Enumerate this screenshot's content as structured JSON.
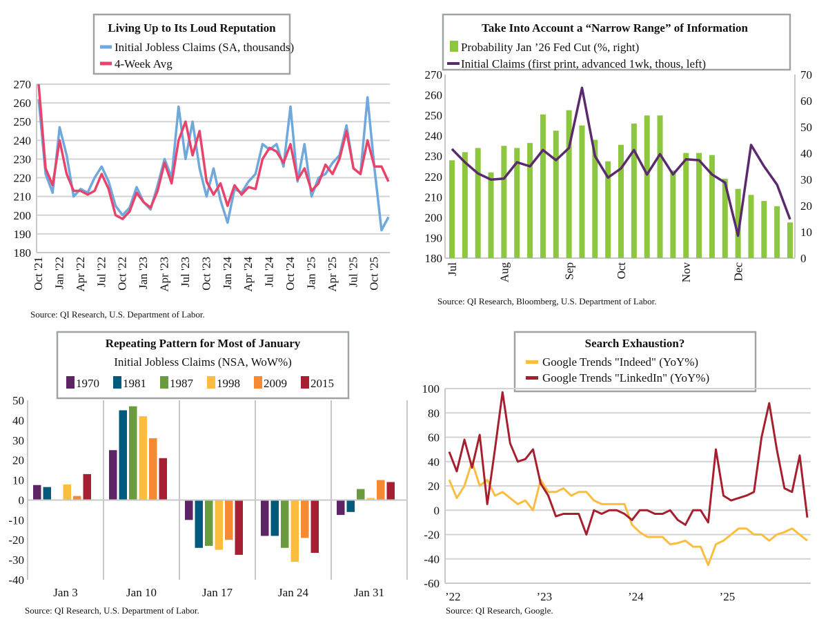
{
  "colors": {
    "claims": "#6fa8dc",
    "avg": "#e8436b",
    "fedcut": "#8dc63f",
    "initial": "#5b2a6e",
    "y1970": "#5e2566",
    "y1981": "#005a7c",
    "y1987": "#6a9c3f",
    "y1998": "#fcbd3e",
    "y2009": "#f58a33",
    "y2015": "#a61f33",
    "indeed": "#fcbd3e",
    "linkedin": "#a61f2f"
  },
  "chart_data": [
    {
      "type": "line",
      "title": "Living Up to Its Loud Reputation",
      "source": "Source: QI Research, U.S. Department of Labor.",
      "ylim": [
        180,
        270
      ],
      "yticks": [
        "180",
        "190",
        "200",
        "210",
        "220",
        "230",
        "240",
        "250",
        "260",
        "270"
      ],
      "xtick_labels": [
        "Oct '21",
        "Jan '22",
        "Apr '22",
        "Jul '22",
        "Oct '22",
        "Jan '23",
        "Apr '23",
        "Jul '23",
        "Oct '23",
        "Jan '24",
        "Apr '24",
        "Jul '24",
        "Oct '24",
        "Jan '25",
        "Apr '25",
        "Jul '25",
        "Oct '25"
      ],
      "grid": true,
      "legend": "top-center",
      "x_start": "2021-10",
      "x_end": "2025-12",
      "x_frequency": "monthly",
      "series": [
        {
          "name": "Initial Jobless Claims (SA, thousands)",
          "color_key": "claims",
          "values": [
            262,
            222,
            212,
            247,
            232,
            210,
            214,
            212,
            220,
            226,
            218,
            205,
            200,
            204,
            215,
            207,
            203,
            216,
            230,
            220,
            258,
            230,
            250,
            225,
            210,
            225,
            208,
            196,
            214,
            212,
            218,
            222,
            238,
            235,
            238,
            226,
            258,
            218,
            238,
            210,
            220,
            222,
            228,
            232,
            248,
            225,
            222,
            263,
            225,
            192,
            199
          ]
        },
        {
          "name": "4-Week Avg",
          "color_key": "avg",
          "values": [
            270,
            225,
            216,
            240,
            222,
            213,
            213,
            211,
            213,
            222,
            214,
            200,
            198,
            202,
            212,
            207,
            204,
            213,
            228,
            217,
            240,
            250,
            232,
            245,
            218,
            211,
            217,
            205,
            216,
            211,
            215,
            214,
            230,
            236,
            234,
            228,
            238,
            219,
            225,
            213,
            217,
            227,
            222,
            230,
            245,
            225,
            222,
            240,
            226,
            226,
            218
          ]
        }
      ]
    },
    {
      "type": "bar+line",
      "title": "Take Into Account a “Narrow Range” of Information",
      "source": "Source: QI Research, Bloomberg, U.S. Department of Labor.",
      "ylim_left": [
        180,
        270
      ],
      "ylim_right": [
        0,
        70
      ],
      "yticks_left": [
        "180",
        "190",
        "200",
        "210",
        "220",
        "230",
        "240",
        "250",
        "260",
        "270"
      ],
      "yticks_right": [
        "0",
        "10",
        "20",
        "30",
        "40",
        "50",
        "60",
        "70"
      ],
      "xtick_labels": [
        "Jul",
        "Aug",
        "Sep",
        "Oct",
        "Nov",
        "Dec"
      ],
      "xtick_weeks": [
        0,
        4,
        9,
        13,
        18,
        22
      ],
      "grid": false,
      "legend": "top-center",
      "series": [
        {
          "name": "Probability Jan ’26 Fed Cut (%, right)",
          "type": "bar",
          "axis": "right",
          "color_key": "fedcut",
          "values": [
            37.3,
            40.4,
            42.0,
            32.7,
            42.8,
            42.0,
            43.9,
            54.8,
            48.6,
            56.4,
            50.6,
            45.1,
            36.9,
            43.2,
            51.3,
            54.4,
            54.4,
            33.4,
            40.1,
            40.1,
            39.3,
            30.3,
            26.4,
            24.1,
            21.8,
            19.8,
            13.6
          ]
        },
        {
          "name": "Initial Claims (first print, advanced 1wk, thous, left)",
          "type": "line",
          "axis": "left",
          "color_key": "initial",
          "values": [
            233.5,
            227,
            221.5,
            218.5,
            219,
            227,
            225,
            233,
            228,
            234,
            263.5,
            230,
            219.5,
            224,
            233,
            221,
            231,
            221,
            228.5,
            228,
            221,
            217,
            191,
            235.5,
            225,
            216,
            199
          ]
        }
      ]
    },
    {
      "type": "bar",
      "title": "Repeating Pattern for Most of January",
      "subtitle": "Initial Jobless Claims (NSA, WoW%)",
      "source": "Source: QI Research, U.S. Department of Labor.",
      "ylim": [
        -40,
        50
      ],
      "yticks": [
        "-40",
        "-30",
        "-20",
        "-10",
        "0",
        "10",
        "20",
        "30",
        "40",
        "50"
      ],
      "categories": [
        "Jan 3",
        "Jan 10",
        "Jan 17",
        "Jan 24",
        "Jan 31"
      ],
      "legend": "top-center",
      "series": [
        {
          "name": "1970",
          "color_key": "y1970",
          "values": [
            7.5,
            25,
            -10,
            -18,
            -7.5
          ]
        },
        {
          "name": "1981",
          "color_key": "y1981",
          "values": [
            6.5,
            45,
            -24,
            -18,
            -6
          ]
        },
        {
          "name": "1987",
          "color_key": "y1987",
          "values": [
            0,
            47,
            -23,
            -24,
            5.5
          ]
        },
        {
          "name": "1998",
          "color_key": "y1998",
          "values": [
            7.8,
            42,
            -25,
            -31,
            1
          ]
        },
        {
          "name": "2009",
          "color_key": "y2009",
          "values": [
            2,
            31,
            -20,
            -19,
            10
          ]
        },
        {
          "name": "2015",
          "color_key": "y2015",
          "values": [
            13,
            21,
            -27.5,
            -26.5,
            9
          ]
        }
      ]
    },
    {
      "type": "line",
      "title": "Search Exhaustion?",
      "source": "Source: QI Research, Google.",
      "ylim": [
        -60,
        100
      ],
      "yticks": [
        "-60",
        "-40",
        "-20",
        "0",
        "20",
        "40",
        "60",
        "80",
        "100"
      ],
      "xtick_labels": [
        "’22",
        "’23",
        "’24",
        "’25"
      ],
      "x_start": "2022-01",
      "x_end": "2025-12",
      "x_frequency": "monthly",
      "grid": true,
      "legend": "top-center",
      "series": [
        {
          "name": "Google Trends \"Indeed\" (YoY%)",
          "color_key": "indeed",
          "values": [
            25,
            10,
            20,
            40,
            20,
            25,
            12,
            15,
            10,
            5,
            8,
            0,
            25,
            15,
            15,
            18,
            12,
            15,
            15,
            8,
            5,
            5,
            5,
            5,
            -12,
            -18,
            -22,
            -22,
            -22,
            -28,
            -27,
            -25,
            -30,
            -30,
            -45,
            -28,
            -25,
            -20,
            -15,
            -15,
            -20,
            -20,
            -25,
            -20,
            -18,
            -15,
            -20,
            -25
          ]
        },
        {
          "name": "Google Trends \"LinkedIn\" (YoY%)",
          "color_key": "linkedin",
          "values": [
            48,
            32,
            58,
            35,
            62,
            5,
            50,
            97,
            55,
            40,
            42,
            50,
            22,
            12,
            -5,
            -3,
            -3,
            -3,
            -20,
            0,
            -3,
            0,
            0,
            -3,
            -8,
            0,
            0,
            -3,
            -3,
            0,
            -8,
            -12,
            0,
            0,
            -10,
            50,
            12,
            8,
            10,
            12,
            15,
            60,
            88,
            50,
            18,
            15,
            45,
            -6
          ]
        }
      ]
    }
  ]
}
